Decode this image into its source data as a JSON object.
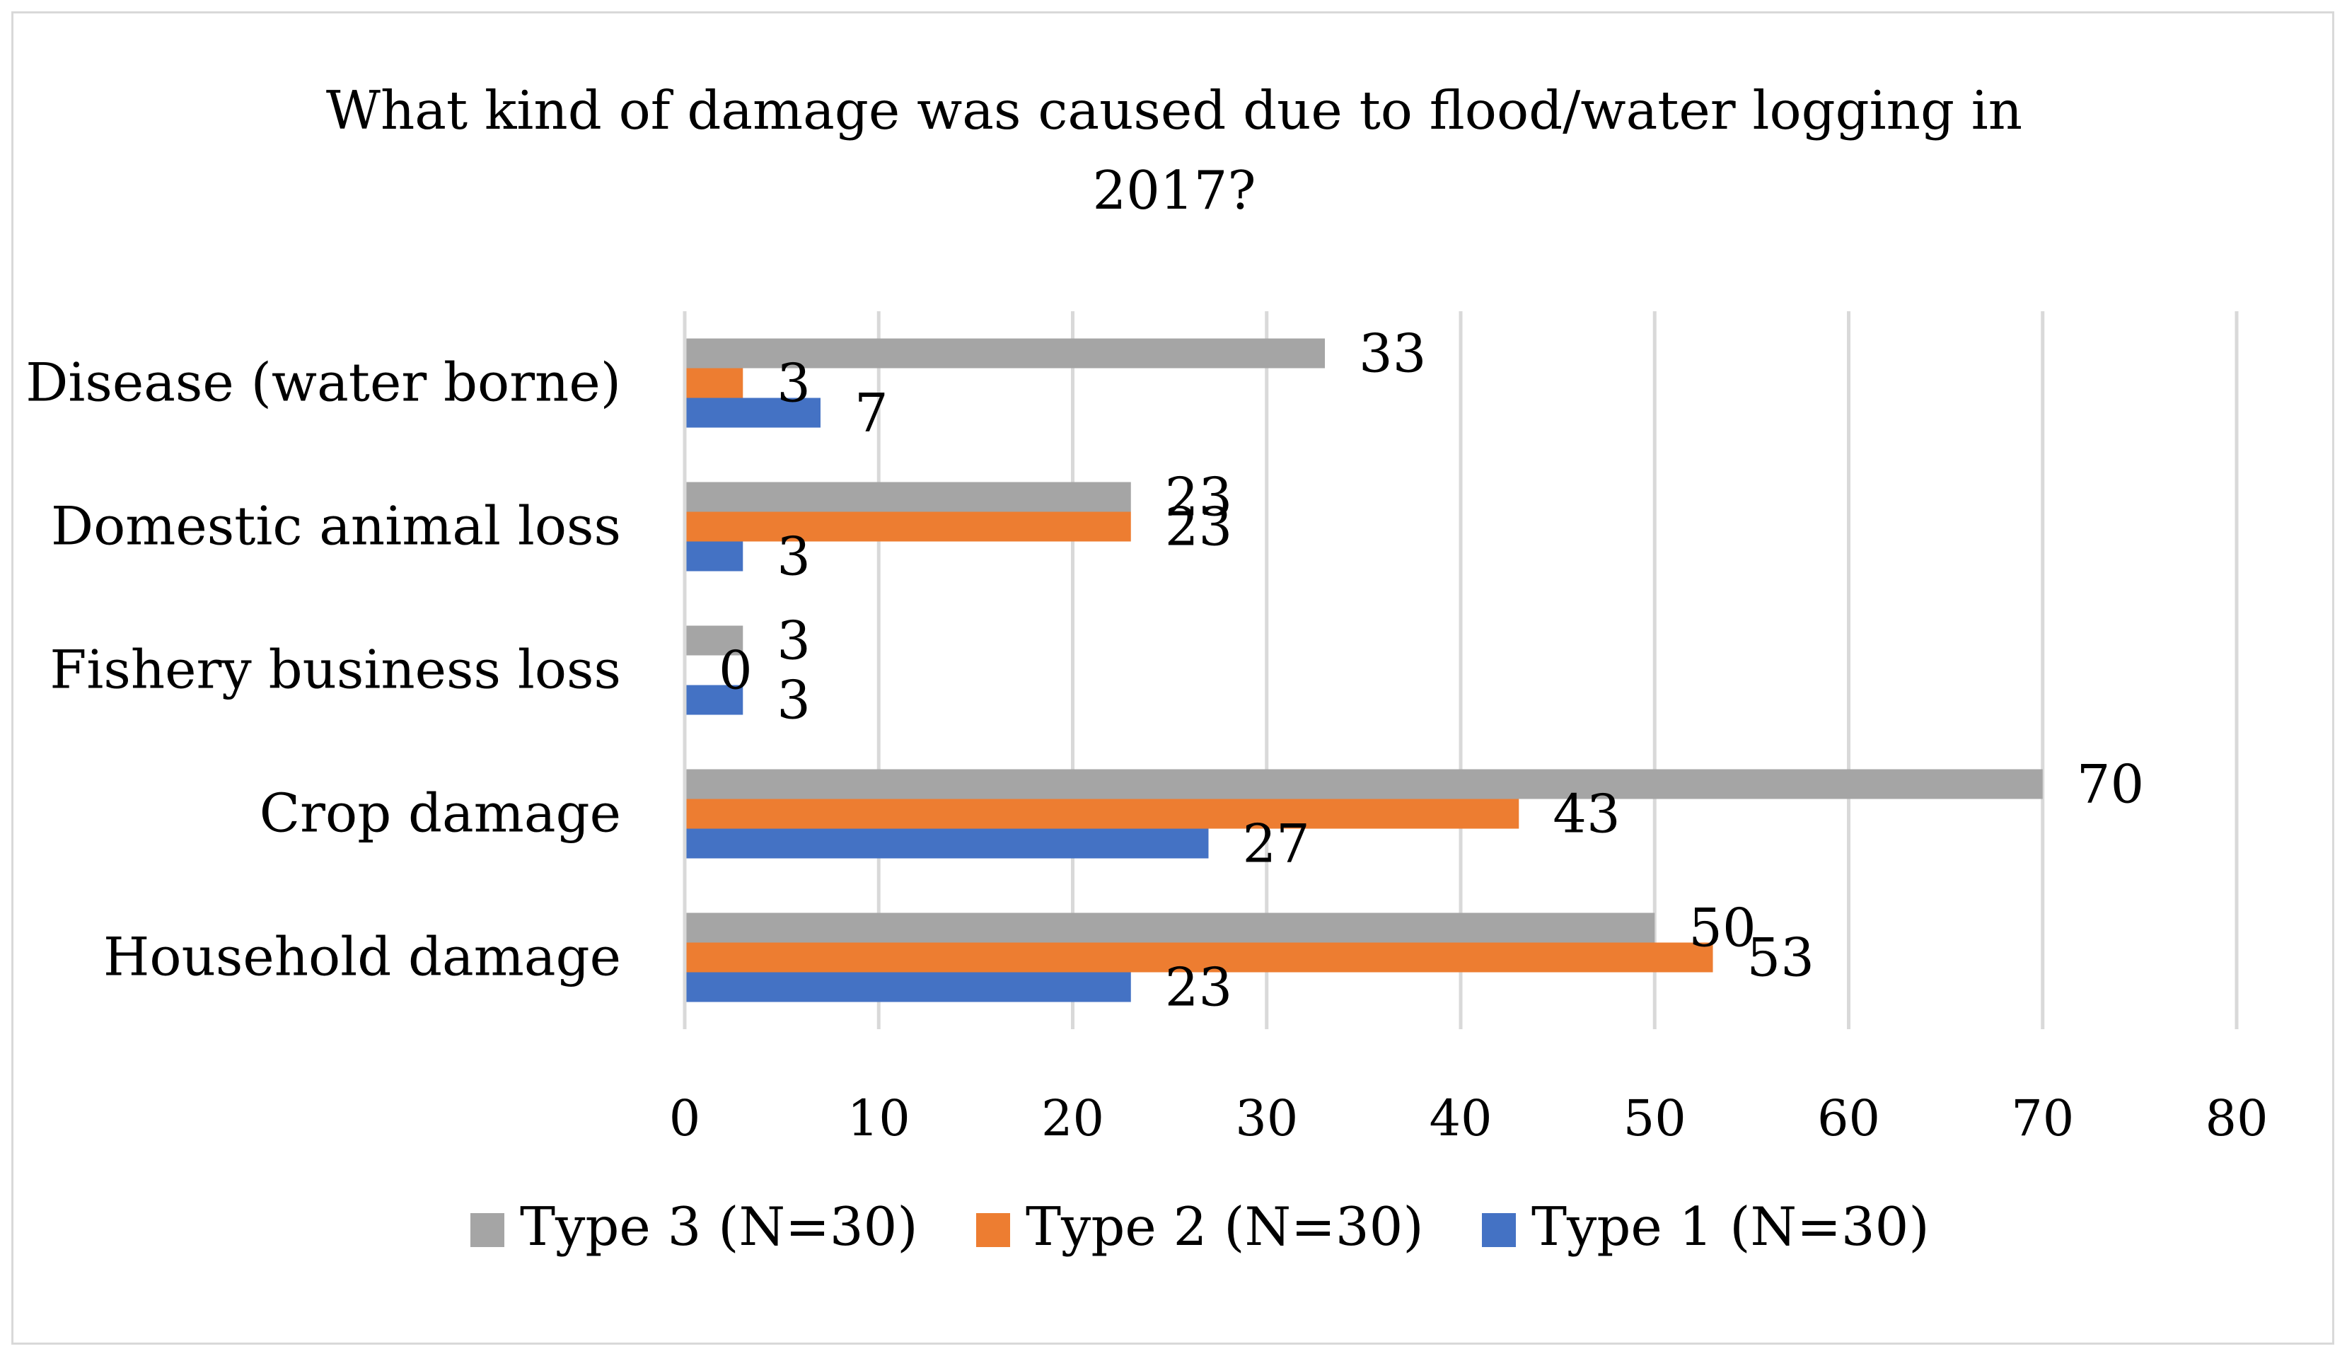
{
  "chart_data": {
    "type": "bar",
    "orientation": "horizontal",
    "title_lines": [
      "What kind of damage was caused due to flood/water logging in",
      "2017?"
    ],
    "categories": [
      "Disease (water borne)",
      "Domestic animal loss",
      "Fishery business loss",
      "Crop damage",
      "Household damage"
    ],
    "series": [
      {
        "name": "Type 3 (N=30)",
        "color": "#a5a5a5",
        "values": [
          33,
          23,
          3,
          70,
          50
        ]
      },
      {
        "name": "Type 2 (N=30)",
        "color": "#ed7d31",
        "values": [
          3,
          23,
          0,
          43,
          53
        ]
      },
      {
        "name": "Type 1 (N=30)",
        "color": "#4472c4",
        "values": [
          7,
          3,
          3,
          27,
          23
        ]
      }
    ],
    "xlim": [
      0,
      80
    ],
    "xticks": [
      0,
      10,
      20,
      30,
      40,
      50,
      60,
      70,
      80
    ],
    "grid": true,
    "legend_position": "bottom"
  }
}
